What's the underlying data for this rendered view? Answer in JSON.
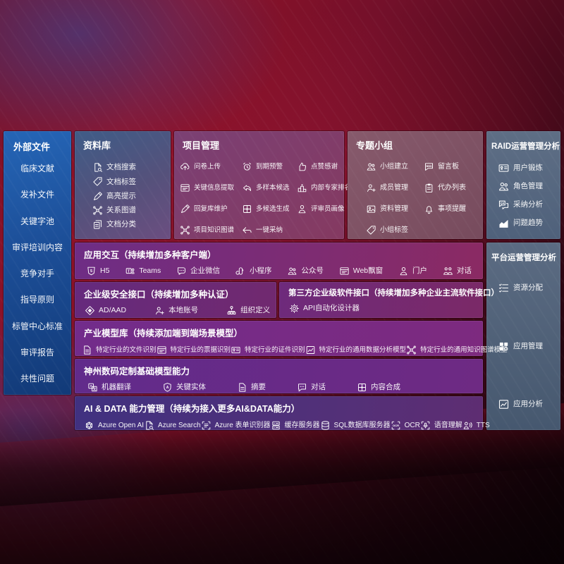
{
  "colors": {
    "background_red": "#7c1026",
    "sidebar_blue": "#1d55a0",
    "row_purple": "#6f2d86",
    "row_indigo": "#403180",
    "panel_slate": "#56677e",
    "text": "#ffffff"
  },
  "sidebar": {
    "title": "外部文件",
    "items": [
      {
        "label": "临床文献"
      },
      {
        "label": "发补文件"
      },
      {
        "label": "关键字池"
      },
      {
        "label": "审评培训内容"
      },
      {
        "label": "竞争对手"
      },
      {
        "label": "指导原则"
      },
      {
        "label": "标管中心标准"
      },
      {
        "label": "审评报告"
      },
      {
        "label": "共性问题"
      }
    ]
  },
  "repo": {
    "title": "资料库",
    "items": [
      {
        "label": "文档搜索",
        "icon": "doc-search"
      },
      {
        "label": "文档标签",
        "icon": "tag"
      },
      {
        "label": "高亮提示",
        "icon": "pen"
      },
      {
        "label": "关系图谱",
        "icon": "graph"
      },
      {
        "label": "文档分类",
        "icon": "docs"
      }
    ]
  },
  "project": {
    "title": "项目管理",
    "cols": [
      [
        {
          "label": "问卷上传",
          "icon": "cloud-up"
        },
        {
          "label": "关键信息提取",
          "icon": "window"
        },
        {
          "label": "回复库维护",
          "icon": "pen"
        },
        {
          "label": "项目知识图谱",
          "icon": "graph"
        }
      ],
      [
        {
          "label": "到期预警",
          "icon": "alarm"
        },
        {
          "label": "多样本候选",
          "icon": "reply"
        },
        {
          "label": "多候选生成",
          "icon": "puzzle"
        },
        {
          "label": "一键采纳",
          "icon": "arrow"
        }
      ],
      [
        {
          "label": "点赞感谢",
          "icon": "thumb"
        },
        {
          "label": "内部专家排名",
          "icon": "podium"
        },
        {
          "label": "评审员画像",
          "icon": "person"
        }
      ]
    ]
  },
  "group": {
    "title": "专题小组",
    "cols": [
      [
        {
          "label": "小组建立",
          "icon": "people"
        },
        {
          "label": "成员管理",
          "icon": "person-add"
        },
        {
          "label": "资料管理",
          "icon": "image"
        },
        {
          "label": "小组标签",
          "icon": "tag"
        }
      ],
      [
        {
          "label": "留言板",
          "icon": "bbs"
        },
        {
          "label": "代办列表",
          "icon": "clipboard"
        },
        {
          "label": "事项提醒",
          "icon": "bell"
        }
      ]
    ]
  },
  "raid": {
    "title": "RAID运营管理分析",
    "items": [
      {
        "label": "用户锻炼",
        "icon": "idcard"
      },
      {
        "label": "角色管理",
        "icon": "people"
      },
      {
        "label": "采纳分析",
        "icon": "qa"
      },
      {
        "label": "问题趋势",
        "icon": "trend"
      }
    ]
  },
  "platform": {
    "title": "平台运营管理分析",
    "items": [
      {
        "label": "资源分配",
        "icon": "list"
      },
      {
        "label": "应用管理",
        "icon": "grid"
      },
      {
        "label": "应用分析",
        "icon": "chart"
      }
    ]
  },
  "rows": {
    "interact": {
      "title": "应用交互（持续增加多种客户端）",
      "items": [
        {
          "label": "H5",
          "icon": "shield5"
        },
        {
          "label": "Teams",
          "icon": "teams"
        },
        {
          "label": "企业微信",
          "icon": "wechat"
        },
        {
          "label": "小程序",
          "icon": "mini"
        },
        {
          "label": "公众号",
          "icon": "people"
        },
        {
          "label": "Web飘窗",
          "icon": "window"
        },
        {
          "label": "门户",
          "icon": "person"
        },
        {
          "label": "对话",
          "icon": "chat-duo"
        }
      ]
    },
    "security": {
      "title": "企业级安全接口（持续增加多种认证）",
      "items": [
        {
          "label": "AD/AAD",
          "icon": "diamond"
        },
        {
          "label": "本地账号",
          "icon": "person-add"
        },
        {
          "label": "组织定义",
          "icon": "org"
        }
      ]
    },
    "third": {
      "title": "第三方企业级软件接口（持续增加多种企业主流软件接口）",
      "items": [
        {
          "label": "API自动化设计器",
          "icon": "gear"
        }
      ]
    },
    "models": {
      "title": "产业模型库（持续添加端到端场景模型）",
      "items": [
        {
          "label": "特定行业的文件识别",
          "icon": "doc"
        },
        {
          "label": "特定行业的票据识别",
          "icon": "window"
        },
        {
          "label": "特定行业的证件识别",
          "icon": "idcard"
        },
        {
          "label": "特定行业的通用数据分析模型",
          "icon": "chart"
        },
        {
          "label": "特定行业的通用知识图谱模型",
          "icon": "graph"
        }
      ]
    },
    "base": {
      "title": "神州数码定制基础模型能力",
      "items": [
        {
          "label": "机器翻译",
          "icon": "translate"
        },
        {
          "label": "关键实体",
          "icon": "shieldA"
        },
        {
          "label": "摘要",
          "icon": "doc"
        },
        {
          "label": "对话",
          "icon": "chat"
        },
        {
          "label": "内容合成",
          "icon": "puzzle"
        }
      ]
    },
    "aidata": {
      "title": "AI & DATA 能力管理（持续为接入更多AI&DATA能力）",
      "items": [
        {
          "label": "Azure Open AI",
          "icon": "openai"
        },
        {
          "label": "Azure Search",
          "icon": "doc-search"
        },
        {
          "label": "Azure 表单识别器",
          "icon": "scan-doc"
        },
        {
          "label": "缓存服务器",
          "icon": "server"
        },
        {
          "label": "SQL数据库服务器",
          "icon": "db"
        },
        {
          "label": "OCR",
          "icon": "ocr"
        },
        {
          "label": "语音理解",
          "icon": "voice"
        },
        {
          "label": "TTS",
          "icon": "tts"
        }
      ]
    }
  }
}
